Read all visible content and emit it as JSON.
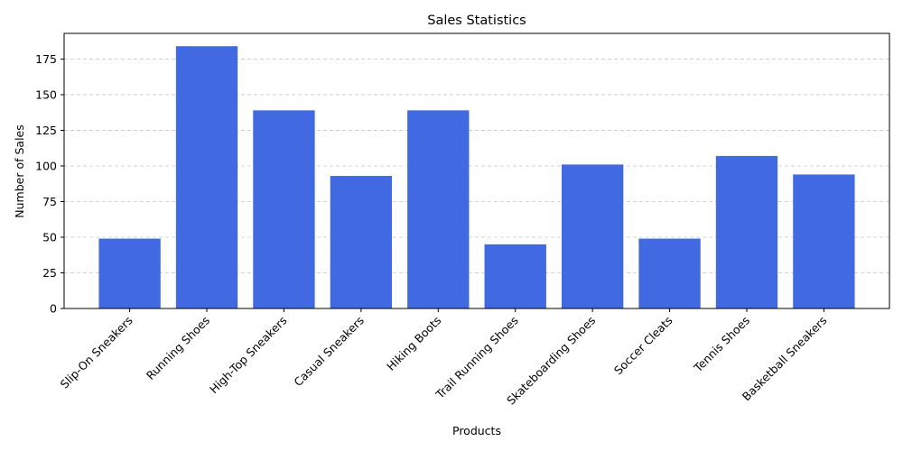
{
  "chart_data": {
    "type": "bar",
    "title": "Sales Statistics",
    "xlabel": "Products",
    "ylabel": "Number of Sales",
    "categories": [
      "Slip-On Sneakers",
      "Running Shoes",
      "High-Top Sneakers",
      "Casual Sneakers",
      "Hiking Boots",
      "Trail Running Shoes",
      "Skateboarding Shoes",
      "Soccer Cleats",
      "Tennis Shoes",
      "Basketball Sneakers"
    ],
    "values": [
      49,
      184,
      139,
      93,
      139,
      45,
      101,
      49,
      107,
      94
    ],
    "ylim": [
      0,
      193
    ],
    "yticks": [
      0,
      25,
      50,
      75,
      100,
      125,
      150,
      175
    ],
    "grid": "y-axis dashed",
    "bar_color": "#4169e1",
    "tick_label_rotation": "45 degrees"
  }
}
